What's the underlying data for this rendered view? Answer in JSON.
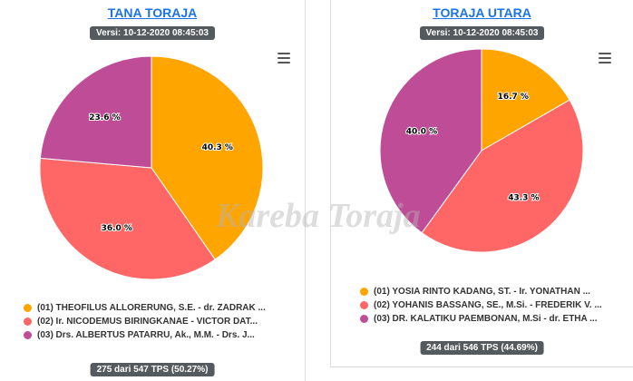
{
  "chart_data": [
    {
      "type": "pie",
      "title": "TANA TORAJA",
      "version": "Versi: 10-12-2020 08:45:03",
      "footer": "275 dari 547 TPS (50.27%)",
      "slices": [
        {
          "label": "(01) THEOFILUS ALLORERUNG, S.E. - dr. ZADRAK ...",
          "value": 40.3,
          "value_label": "40.3 %",
          "color": "#FFA500"
        },
        {
          "label": "(02) Ir. NICODEMUS BIRINGKANAE - VICTOR DAT...",
          "value": 36.0,
          "value_label": "36.0 %",
          "color": "#FF6666"
        },
        {
          "label": "(03) Drs. ALBERTUS PATARRU, Ak., M.M. - Drs. J...",
          "value": 23.6,
          "value_label": "23.6 %",
          "color": "#BF4C96"
        }
      ],
      "legend_position": "bottom"
    },
    {
      "type": "pie",
      "title": "TORAJA UTARA",
      "version": "Versi: 10-12-2020 08:45:03",
      "footer": "244 dari 546 TPS (44.69%)",
      "slices": [
        {
          "label": "(01) YOSIA RINTO KADANG, ST. - Ir. YONATHAN ...",
          "value": 16.7,
          "value_label": "16.7 %",
          "color": "#FFA500"
        },
        {
          "label": "(02) YOHANIS BASSANG, SE., M.Si. - FREDERIK V. ...",
          "value": 43.3,
          "value_label": "43.3 %",
          "color": "#FF6666"
        },
        {
          "label": "(03) DR. KALATIKU PAEMBONAN, M.Si - dr. ETHA ...",
          "value": 40.0,
          "value_label": "40.0 %",
          "color": "#BF4C96"
        }
      ],
      "legend_position": "bottom"
    }
  ],
  "watermark": "Kareba Toraja",
  "icons": {
    "menu": "hamburger-menu-icon"
  }
}
